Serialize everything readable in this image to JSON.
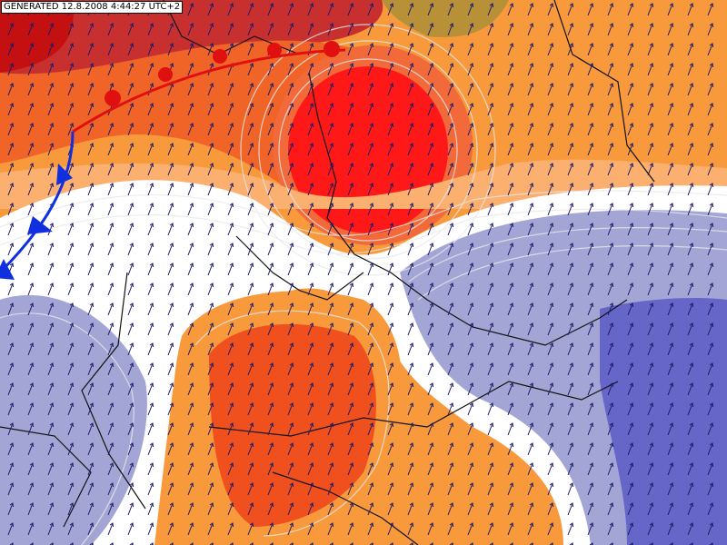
{
  "header": {
    "generated": "GENERATED 12.8.2008 4:44:27 UTC+2"
  }
}
